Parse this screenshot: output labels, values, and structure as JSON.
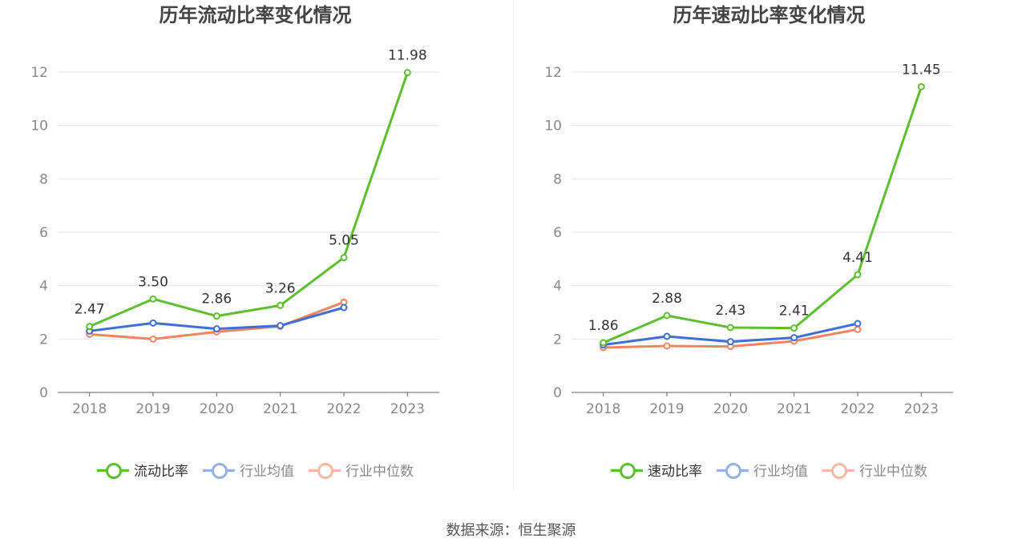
{
  "chart_data": [
    {
      "type": "line",
      "title": "历年流动比率变化情况",
      "categories": [
        "2018",
        "2019",
        "2020",
        "2021",
        "2022",
        "2023"
      ],
      "ylim": [
        0,
        12
      ],
      "yticks": [
        0,
        2,
        4,
        6,
        8,
        10,
        12
      ],
      "series": [
        {
          "name": "流动比率",
          "color": "#5dbf2d",
          "values": [
            2.47,
            3.5,
            2.86,
            3.26,
            5.05,
            11.98
          ],
          "labels": [
            "2.47",
            "3.50",
            "2.86",
            "3.26",
            "5.05",
            "11.98"
          ]
        },
        {
          "name": "行业均值",
          "color": "#3d6fd6",
          "values": [
            2.3,
            2.6,
            2.38,
            2.5,
            3.18,
            null
          ]
        },
        {
          "name": "行业中位数",
          "color": "#f0845f",
          "values": [
            2.18,
            2.0,
            2.27,
            2.48,
            3.38,
            null
          ]
        }
      ],
      "legend_colors": [
        "#5dbf2d",
        "#94b2ea",
        "#f6b8a0"
      ],
      "grid": true,
      "legend_position": "bottom"
    },
    {
      "type": "line",
      "title": "历年速动比率变化情况",
      "categories": [
        "2018",
        "2019",
        "2020",
        "2021",
        "2022",
        "2023"
      ],
      "ylim": [
        0,
        12
      ],
      "yticks": [
        0,
        2,
        4,
        6,
        8,
        10,
        12
      ],
      "series": [
        {
          "name": "速动比率",
          "color": "#5dbf2d",
          "values": [
            1.86,
            2.88,
            2.43,
            2.41,
            4.41,
            11.45
          ],
          "labels": [
            "1.86",
            "2.88",
            "2.43",
            "2.41",
            "4.41",
            "11.45"
          ]
        },
        {
          "name": "行业均值",
          "color": "#3d6fd6",
          "values": [
            1.78,
            2.1,
            1.9,
            2.05,
            2.58,
            null
          ]
        },
        {
          "name": "行业中位数",
          "color": "#f0845f",
          "values": [
            1.68,
            1.74,
            1.72,
            1.92,
            2.36,
            null
          ]
        }
      ],
      "legend_colors": [
        "#5dbf2d",
        "#94b2ea",
        "#f6b8a0"
      ],
      "grid": true,
      "legend_position": "bottom"
    }
  ],
  "source_text": "数据来源：恒生聚源"
}
